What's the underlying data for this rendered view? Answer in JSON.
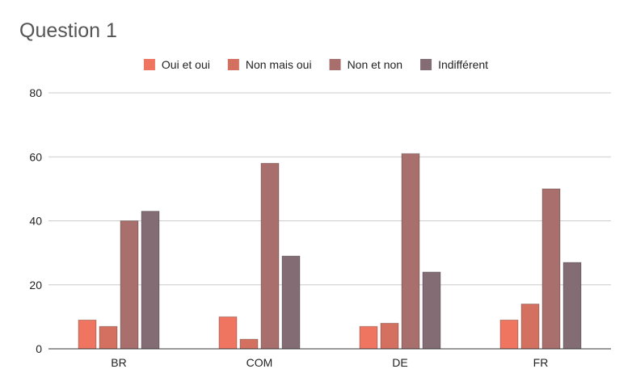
{
  "chart_data": {
    "type": "bar",
    "title": "Question 1",
    "categories": [
      "BR",
      "COM",
      "DE",
      "FR"
    ],
    "series": [
      {
        "name": "Oui et oui",
        "color": "#f07560",
        "values": [
          9,
          10,
          7,
          9
        ]
      },
      {
        "name": "Non mais oui",
        "color": "#d4705f",
        "values": [
          7,
          3,
          8,
          14
        ]
      },
      {
        "name": "Non et non",
        "color": "#a86f6c",
        "values": [
          40,
          58,
          61,
          50
        ]
      },
      {
        "name": "Indifférent",
        "color": "#836c74",
        "values": [
          43,
          29,
          24,
          27
        ]
      }
    ],
    "ylim": [
      0,
      80
    ],
    "yticks": [
      "0",
      "20",
      "40",
      "60",
      "80"
    ],
    "grid": true,
    "legend": "top"
  }
}
